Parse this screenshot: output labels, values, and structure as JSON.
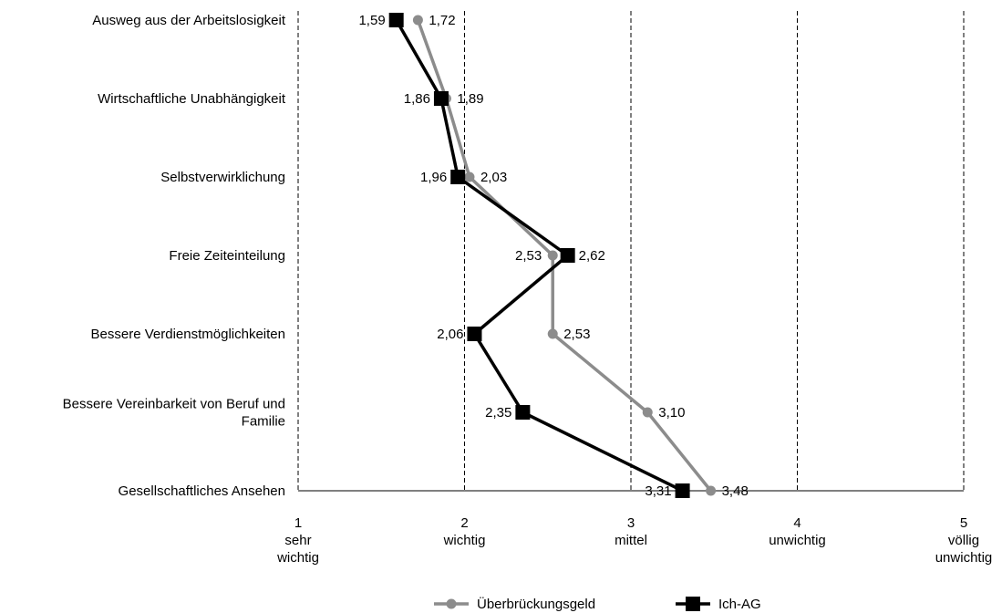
{
  "chart_data": {
    "type": "line",
    "orientation": "horizontal-values",
    "categories": [
      "Ausweg aus der Arbeitslosigkeit",
      "Wirtschaftliche Unabhängigkeit",
      "Selbstverwirklichung",
      "Freie  Zeiteinteilung",
      "Bessere Verdienstmöglichkeiten",
      "Bessere Vereinbarkeit von Beruf und Familie",
      "Gesellschaftliches Ansehen"
    ],
    "series": [
      {
        "name": "Überbrückungsgeld",
        "color": "#8c8c8c",
        "marker": "circle",
        "values": [
          1.72,
          1.89,
          2.03,
          2.53,
          2.53,
          3.1,
          3.48
        ],
        "value_labels": [
          "1,72",
          "1,89",
          "2,03",
          "2,53",
          "2,53",
          "3,10",
          "3,48"
        ]
      },
      {
        "name": "Ich-AG",
        "color": "#000000",
        "marker": "square",
        "values": [
          1.59,
          1.86,
          1.96,
          2.62,
          2.06,
          2.35,
          3.31
        ],
        "value_labels": [
          "1,59",
          "1,86",
          "1,96",
          "2,62",
          "2,06",
          "2,35",
          "3,31"
        ]
      }
    ],
    "xlim": [
      1,
      5
    ],
    "x_ticks": [
      {
        "value": 1,
        "lines": [
          "1",
          "sehr",
          "wichtig"
        ]
      },
      {
        "value": 2,
        "lines": [
          "2",
          "wichtig"
        ]
      },
      {
        "value": 3,
        "lines": [
          "3",
          "mittel"
        ]
      },
      {
        "value": 4,
        "lines": [
          "4",
          "unwichtig"
        ]
      },
      {
        "value": 5,
        "lines": [
          "5",
          "völlig",
          "unwichtig"
        ]
      }
    ],
    "grid": "vertical-dashed",
    "legend_position": "bottom"
  }
}
